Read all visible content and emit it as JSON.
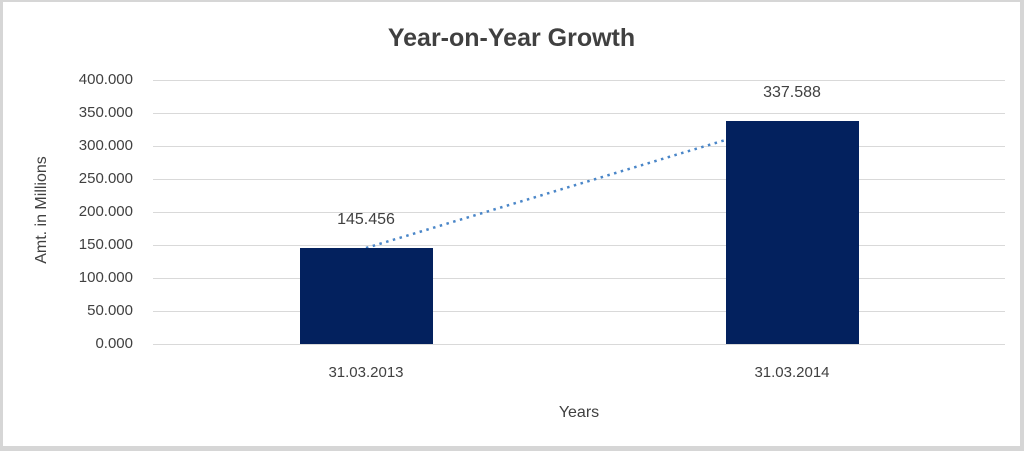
{
  "window": {
    "background": "#ffffff",
    "border_color": "#d6d6d6"
  },
  "chart_data": {
    "type": "bar",
    "title": "Year-on-Year Growth",
    "categories": [
      "31.03.2013",
      "31.03.2014"
    ],
    "values": [
      145.456,
      337.588
    ],
    "value_labels": [
      "145.456",
      "337.588"
    ],
    "xlabel": "Years",
    "ylabel": "Amt. in Millions",
    "ylim": [
      0,
      400
    ],
    "ytick_step": 50,
    "yticks": [
      0,
      50,
      100,
      150,
      200,
      250,
      300,
      350,
      400
    ],
    "ytick_labels": [
      "0.000",
      "50.000",
      "100.000",
      "150.000",
      "200.000",
      "250.000",
      "300.000",
      "350.000",
      "400.000"
    ],
    "grid": true,
    "legend": false,
    "bar_color": "#03215e",
    "gridline_color": "#d9d9d9",
    "text_color": "#404040",
    "trendline": {
      "style": "dotted",
      "color": "#4a86c8",
      "from_point": [
        145.456,
        337.588
      ]
    }
  }
}
